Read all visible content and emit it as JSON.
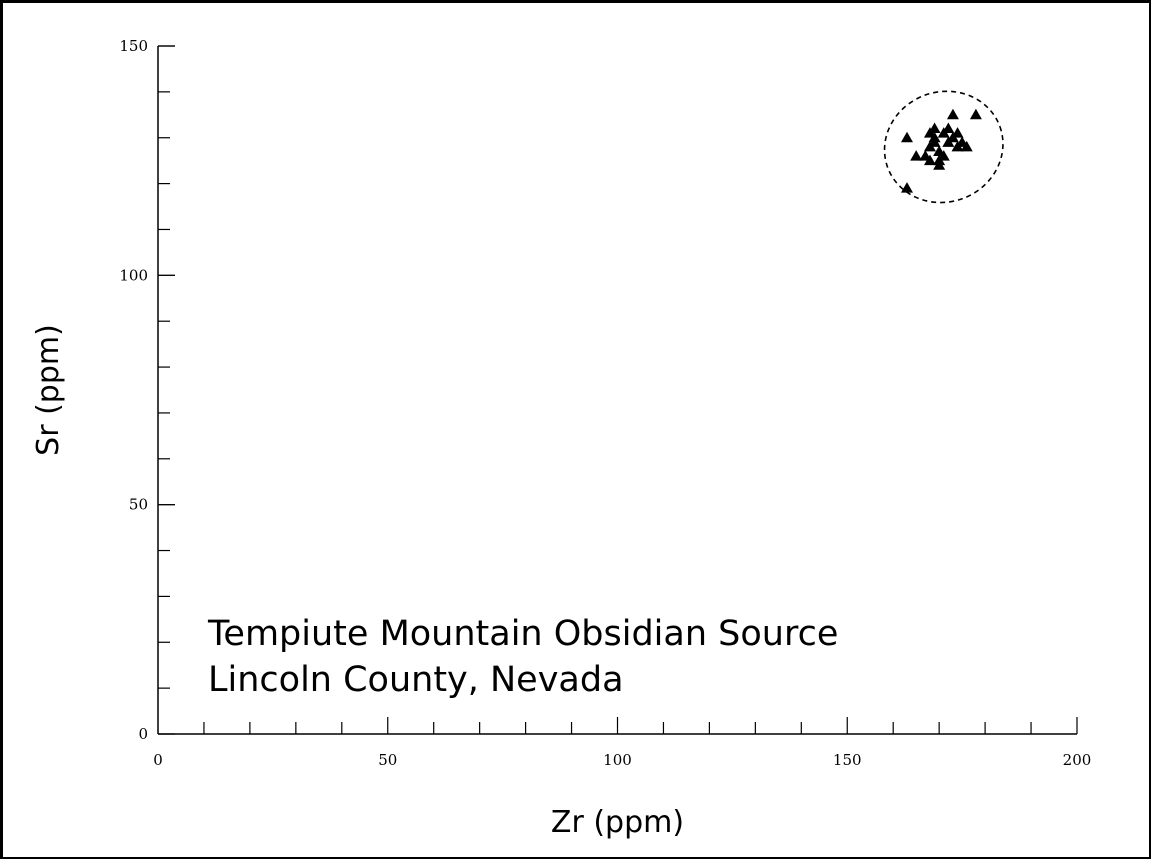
{
  "chart_data": {
    "type": "scatter",
    "xlabel": "Zr (ppm)",
    "ylabel": "Sr (ppm)",
    "xlim": [
      0,
      200
    ],
    "ylim": [
      0,
      150
    ],
    "x_ticks": [
      0,
      50,
      100,
      150,
      200
    ],
    "y_ticks": [
      0,
      50,
      100,
      150
    ],
    "x_minor_step": 10,
    "y_minor_step": 10,
    "grid": false,
    "marker": "triangle",
    "marker_color": "#000000",
    "annotation_lines": [
      "Tempiute Mountain Obsidian Source",
      "Lincoln County, Nevada"
    ],
    "ellipse": {
      "cx": 171,
      "cy": 128,
      "rx": 13,
      "ry": 12,
      "rotation": -20,
      "style": "dashed"
    },
    "series": [
      {
        "x": [
          163,
          165,
          167,
          168,
          168,
          169,
          169,
          170,
          170,
          171,
          171,
          172,
          172,
          173,
          173,
          174,
          174,
          175,
          176,
          178,
          168,
          170,
          169,
          163
        ],
        "y": [
          130,
          126,
          126,
          131,
          128,
          132,
          129,
          127,
          124,
          131,
          126,
          132,
          129,
          135,
          130,
          128,
          131,
          129,
          128,
          135,
          125,
          125,
          130,
          119
        ]
      }
    ]
  }
}
